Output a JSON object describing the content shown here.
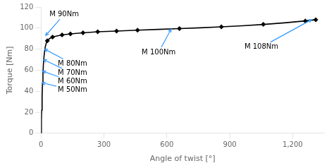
{
  "chart_data": {
    "type": "line",
    "xlabel": "Angle of twist [°]",
    "ylabel": "Torque [Nm]",
    "xlim": [
      0,
      1350
    ],
    "ylim": [
      0,
      120
    ],
    "xticks": [
      0,
      300,
      600,
      900,
      1200
    ],
    "yticks": [
      0,
      20,
      40,
      60,
      80,
      100,
      120
    ],
    "grid": false,
    "series": [
      {
        "color": "#000000",
        "marker": "none",
        "line_style": "solid",
        "x": [
          0,
          1,
          2,
          3,
          5,
          7,
          9,
          11,
          14,
          17,
          20,
          25,
          30,
          40,
          55,
          75,
          100,
          140,
          200,
          270,
          360,
          460,
          560,
          660,
          760,
          860,
          960,
          1060,
          1160,
          1260,
          1310
        ],
        "values": [
          0,
          5,
          13,
          22,
          35,
          47,
          57,
          65,
          73,
          78,
          82,
          86,
          88,
          90,
          91.5,
          92.5,
          93.5,
          94.5,
          95.5,
          96.5,
          97.2,
          98,
          98.8,
          99.5,
          100.3,
          101.2,
          102.2,
          103.5,
          105,
          106.8,
          108
        ]
      },
      {
        "color": "#000000",
        "marker": "diamond",
        "line_style": "none",
        "x": [
          30,
          55,
          100,
          140,
          200,
          270,
          360,
          460,
          660,
          860,
          1060,
          1260,
          1310
        ],
        "values": [
          88,
          91.5,
          93.5,
          94.5,
          95.5,
          96.5,
          97.2,
          98,
          99.5,
          101.2,
          103.5,
          106.8,
          108
        ]
      }
    ],
    "annotations": [
      {
        "text": "M 90Nm",
        "x": 40,
        "y": 113,
        "arrow_x": 22,
        "arrow_y": 93,
        "color": "#3399ff"
      },
      {
        "text": "M 80Nm",
        "x": 80,
        "y": 66,
        "arrow_x": 17,
        "arrow_y": 80,
        "color": "#3399ff"
      },
      {
        "text": "M 70Nm",
        "x": 80,
        "y": 57,
        "arrow_x": 12,
        "arrow_y": 70,
        "color": "#3399ff"
      },
      {
        "text": "M 60Nm",
        "x": 80,
        "y": 49,
        "arrow_x": 8,
        "arrow_y": 59,
        "color": "#3399ff"
      },
      {
        "text": "M 50Nm",
        "x": 80,
        "y": 41,
        "arrow_x": 5,
        "arrow_y": 48,
        "color": "#3399ff"
      },
      {
        "text": "M 100Nm",
        "x": 480,
        "y": 77,
        "arrow_x": 620,
        "arrow_y": 99,
        "color": "#3399ff"
      },
      {
        "text": "M 108Nm",
        "x": 970,
        "y": 82,
        "arrow_x": 1290,
        "arrow_y": 108,
        "color": "#3399ff"
      }
    ]
  }
}
